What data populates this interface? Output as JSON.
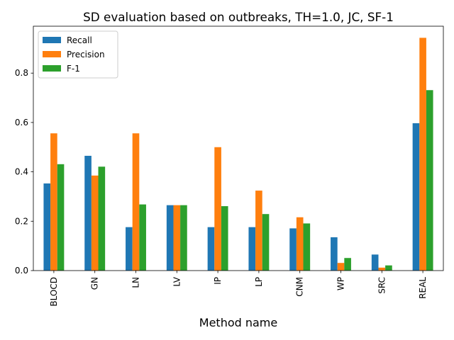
{
  "chart_data": {
    "type": "bar",
    "title": "SD evaluation based on outbreaks, TH=1.0, JC, SF-1",
    "xlabel": "Method name",
    "ylabel": "",
    "categories": [
      "BLOCD",
      "GN",
      "LN",
      "LV",
      "IP",
      "LP",
      "CNM",
      "WP",
      "SRC",
      "REAL"
    ],
    "series": [
      {
        "name": "Recall",
        "color": "#1f77b4",
        "values": [
          0.353,
          0.465,
          0.176,
          0.265,
          0.176,
          0.176,
          0.171,
          0.135,
          0.065,
          0.597
        ]
      },
      {
        "name": "Precision",
        "color": "#ff7f0e",
        "values": [
          0.556,
          0.385,
          0.556,
          0.265,
          0.5,
          0.324,
          0.216,
          0.031,
          0.012,
          0.943
        ]
      },
      {
        "name": "F-1",
        "color": "#2ca02c",
        "values": [
          0.431,
          0.421,
          0.268,
          0.265,
          0.261,
          0.229,
          0.191,
          0.051,
          0.021,
          0.731
        ]
      }
    ],
    "yticks": [
      0.0,
      0.2,
      0.4,
      0.6,
      0.8
    ],
    "ylim": [
      0,
      0.99
    ],
    "grid": false,
    "legend_position": "top-left"
  }
}
